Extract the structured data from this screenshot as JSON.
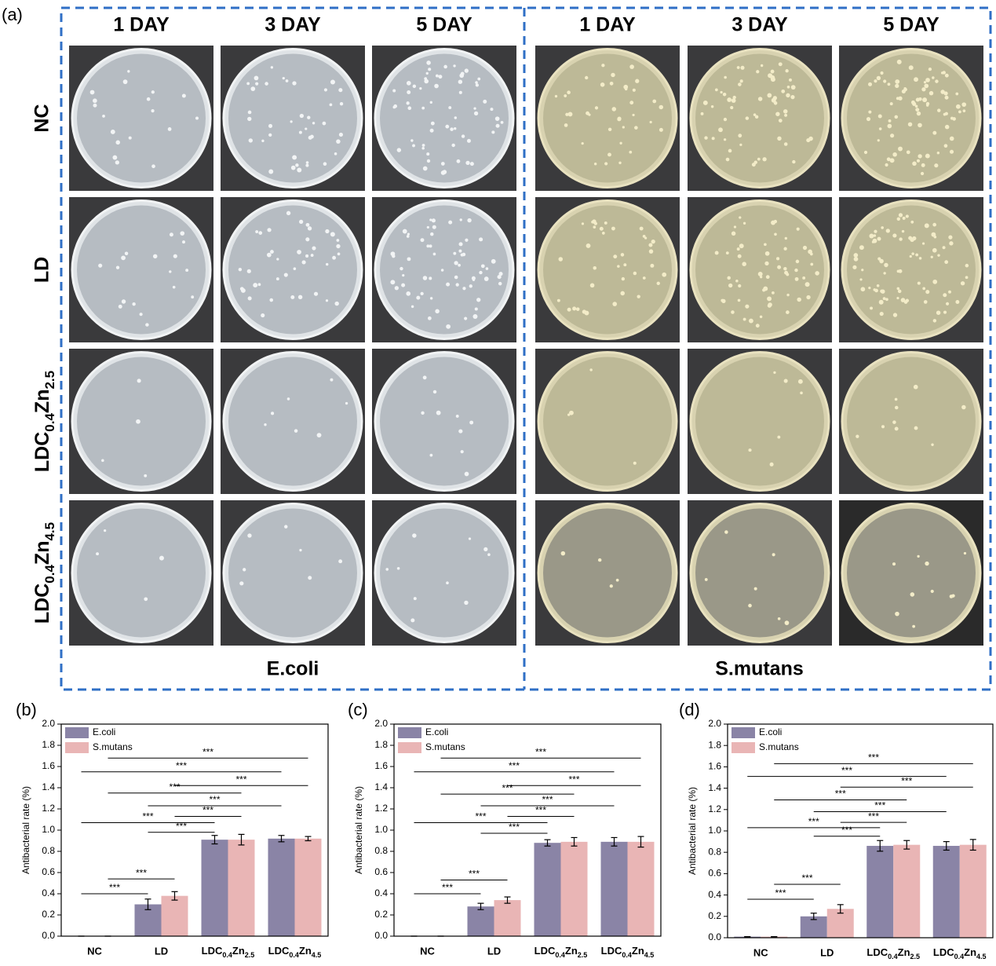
{
  "label": "(a)",
  "panel_a": {
    "columns": [
      "1 DAY",
      "3 DAY",
      "5 DAY"
    ],
    "rows": [
      "NC",
      "LD",
      "LDC0.4Zn2.5",
      "LDC0.4Zn4.5"
    ],
    "groups": [
      "E.coli",
      "S.mutans"
    ]
  },
  "chart_data": [
    {
      "type": "bar",
      "panel": "(b)",
      "ylabel": "Antibacterial rate (%)",
      "categories": [
        "NC",
        "LD",
        "LDC0.4Zn2.5",
        "LDC0.4Zn4.5"
      ],
      "series": [
        {
          "name": "E.coli",
          "color": "#8a84a6",
          "values": [
            0,
            0.3,
            0.91,
            0.92
          ],
          "errors": [
            0,
            0.05,
            0.04,
            0.03
          ]
        },
        {
          "name": "S.mutans",
          "color": "#e9b5b5",
          "values": [
            0,
            0.38,
            0.91,
            0.92
          ],
          "errors": [
            0,
            0.04,
            0.05,
            0.02
          ]
        }
      ],
      "ylim": [
        0,
        2.0
      ],
      "yticks": [
        {
          "value": 0,
          "label": "0.0"
        },
        0.2,
        0.4,
        0.6,
        0.8,
        {
          "value": 1,
          "label": "1.0"
        },
        1.2,
        1.4,
        1.6,
        1.8,
        {
          "value": 2,
          "label": "2.0"
        }
      ],
      "significance": [
        {
          "label": "***",
          "y": 0.4,
          "from": [
            0,
            0
          ],
          "to": [
            1,
            0
          ]
        },
        {
          "label": "***",
          "y": 0.54,
          "from": [
            0,
            1
          ],
          "to": [
            1,
            1
          ]
        },
        {
          "label": "***",
          "y": 0.98,
          "from": [
            1,
            0
          ],
          "to": [
            2,
            0
          ]
        },
        {
          "label": "***",
          "y": 1.07,
          "from": [
            0,
            0
          ],
          "to": [
            2,
            0
          ]
        },
        {
          "label": "***",
          "y": 1.13,
          "from": [
            1,
            1
          ],
          "to": [
            2,
            1
          ]
        },
        {
          "label": "***",
          "y": 1.23,
          "from": [
            1,
            0
          ],
          "to": [
            3,
            0
          ]
        },
        {
          "label": "***",
          "y": 1.35,
          "from": [
            0,
            1
          ],
          "to": [
            2,
            1
          ]
        },
        {
          "label": "***",
          "y": 1.42,
          "from": [
            1,
            1
          ],
          "to": [
            3,
            1
          ]
        },
        {
          "label": "***",
          "y": 1.55,
          "from": [
            0,
            0
          ],
          "to": [
            3,
            0
          ]
        },
        {
          "label": "***",
          "y": 1.68,
          "from": [
            0,
            1
          ],
          "to": [
            3,
            1
          ]
        }
      ]
    },
    {
      "type": "bar",
      "panel": "(c)",
      "ylabel": "Antibacterial rate (%)",
      "categories": [
        "NC",
        "LD",
        "LDC0.4Zn2.5",
        "LDC0.4Zn4.5"
      ],
      "series": [
        {
          "name": "E.coli",
          "color": "#8a84a6",
          "values": [
            0,
            0.28,
            0.88,
            0.89
          ],
          "errors": [
            0,
            0.03,
            0.03,
            0.04
          ]
        },
        {
          "name": "S.mutans",
          "color": "#e9b5b5",
          "values": [
            0,
            0.34,
            0.89,
            0.89
          ],
          "errors": [
            0,
            0.03,
            0.04,
            0.05
          ]
        }
      ],
      "ylim": [
        0,
        2.0
      ],
      "yticks": [
        {
          "value": 0,
          "label": "0.0"
        },
        0.2,
        0.4,
        0.6,
        0.8,
        {
          "value": 1,
          "label": "1.0"
        },
        1.2,
        1.4,
        1.6,
        1.8,
        {
          "value": 2,
          "label": "2.0"
        }
      ],
      "significance": [
        {
          "label": "***",
          "y": 0.4,
          "from": [
            0,
            0
          ],
          "to": [
            1,
            0
          ]
        },
        {
          "label": "***",
          "y": 0.53,
          "from": [
            0,
            1
          ],
          "to": [
            1,
            1
          ]
        },
        {
          "label": "***",
          "y": 0.97,
          "from": [
            1,
            0
          ],
          "to": [
            2,
            0
          ]
        },
        {
          "label": "***",
          "y": 1.07,
          "from": [
            0,
            0
          ],
          "to": [
            2,
            0
          ]
        },
        {
          "label": "***",
          "y": 1.13,
          "from": [
            1,
            1
          ],
          "to": [
            2,
            1
          ]
        },
        {
          "label": "***",
          "y": 1.23,
          "from": [
            1,
            0
          ],
          "to": [
            3,
            0
          ]
        },
        {
          "label": "***",
          "y": 1.34,
          "from": [
            0,
            1
          ],
          "to": [
            2,
            1
          ]
        },
        {
          "label": "***",
          "y": 1.42,
          "from": [
            1,
            1
          ],
          "to": [
            3,
            1
          ]
        },
        {
          "label": "***",
          "y": 1.55,
          "from": [
            0,
            0
          ],
          "to": [
            3,
            0
          ]
        },
        {
          "label": "***",
          "y": 1.68,
          "from": [
            0,
            1
          ],
          "to": [
            3,
            1
          ]
        }
      ]
    },
    {
      "type": "bar",
      "panel": "(d)",
      "ylabel": "Antibacterial rate (%)",
      "categories": [
        "NC",
        "LD",
        "LDC0.4Zn2.5",
        "LDC0.4Zn4.5"
      ],
      "series": [
        {
          "name": "E.coli",
          "color": "#8a84a6",
          "values": [
            0.01,
            0.2,
            0.86,
            0.86
          ],
          "errors": [
            0,
            0.03,
            0.05,
            0.04
          ]
        },
        {
          "name": "S.mutans",
          "color": "#e9b5b5",
          "values": [
            0.01,
            0.27,
            0.87,
            0.87
          ],
          "errors": [
            0,
            0.04,
            0.04,
            0.05
          ]
        }
      ],
      "ylim": [
        0,
        2.0
      ],
      "yticks": [
        {
          "value": 0,
          "label": "0.0"
        },
        0.2,
        0.4,
        0.6,
        0.8,
        {
          "value": 1,
          "label": "1.0"
        },
        1.2,
        1.4,
        1.6,
        1.8,
        {
          "value": 2,
          "label": "2.0"
        }
      ],
      "significance": [
        {
          "label": "***",
          "y": 0.36,
          "from": [
            0,
            0
          ],
          "to": [
            1,
            0
          ]
        },
        {
          "label": "***",
          "y": 0.5,
          "from": [
            0,
            1
          ],
          "to": [
            1,
            1
          ]
        },
        {
          "label": "***",
          "y": 0.95,
          "from": [
            1,
            0
          ],
          "to": [
            2,
            0
          ]
        },
        {
          "label": "***",
          "y": 1.03,
          "from": [
            0,
            0
          ],
          "to": [
            2,
            0
          ]
        },
        {
          "label": "***",
          "y": 1.08,
          "from": [
            1,
            1
          ],
          "to": [
            2,
            1
          ]
        },
        {
          "label": "***",
          "y": 1.18,
          "from": [
            1,
            0
          ],
          "to": [
            3,
            0
          ]
        },
        {
          "label": "***",
          "y": 1.29,
          "from": [
            0,
            1
          ],
          "to": [
            2,
            1
          ]
        },
        {
          "label": "***",
          "y": 1.41,
          "from": [
            1,
            1
          ],
          "to": [
            3,
            1
          ]
        },
        {
          "label": "***",
          "y": 1.51,
          "from": [
            0,
            0
          ],
          "to": [
            3,
            0
          ]
        },
        {
          "label": "***",
          "y": 1.63,
          "from": [
            0,
            1
          ],
          "to": [
            3,
            1
          ]
        }
      ]
    }
  ]
}
